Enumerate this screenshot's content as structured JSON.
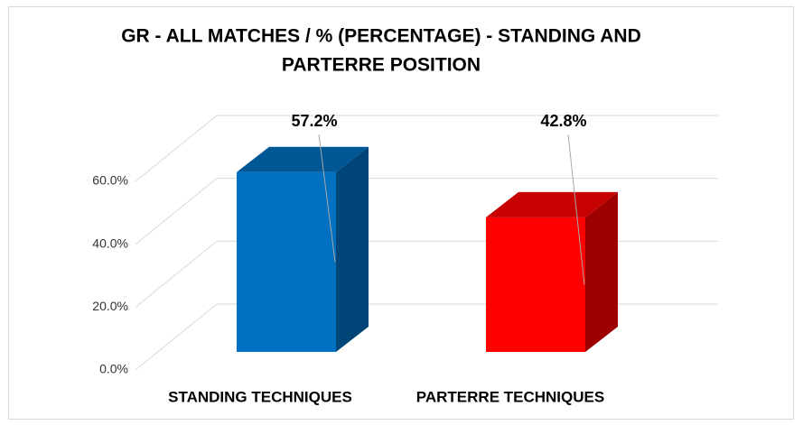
{
  "chart_data": {
    "type": "bar3d",
    "title": [
      "GR - ALL MATCHES / % (PERCENTAGE) - STANDING AND",
      "PARTERRE POSITION"
    ],
    "categories": [
      "STANDING TECHNIQUES",
      "PARTERRE TECHNIQUES"
    ],
    "values": [
      57.2,
      42.8
    ],
    "value_labels": [
      "57.2%",
      "42.8%"
    ],
    "colors": [
      "#0070c0",
      "#ff0000"
    ],
    "ylim": [
      0,
      60
    ],
    "yticks": [
      {
        "value": 0,
        "label": "0.0%"
      },
      {
        "value": 20,
        "label": "20.0%"
      },
      {
        "value": 40,
        "label": "40.0%"
      },
      {
        "value": 60,
        "label": "60.0%"
      }
    ],
    "grid": true
  }
}
